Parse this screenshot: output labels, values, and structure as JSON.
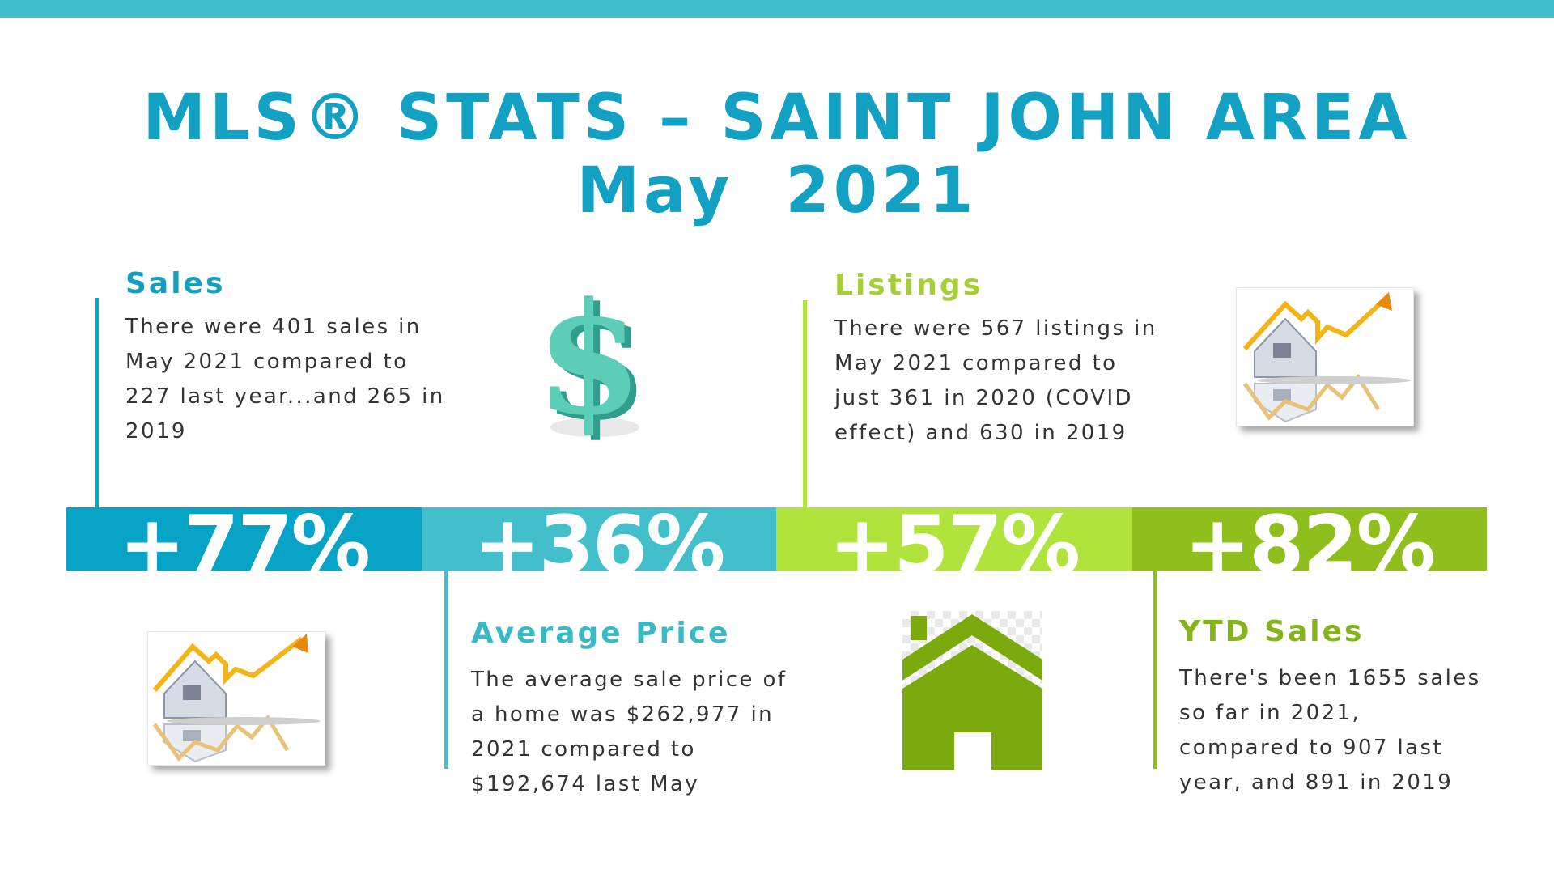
{
  "header": {
    "title_line1": "MLS® STATS – SAINT JOHN AREA",
    "title_line2": "May  2021"
  },
  "sections": {
    "sales": {
      "heading": "Sales",
      "lines": [
        "There were 401 sales in",
        "May 2021 compared to",
        "227 last year...and 265 in",
        "2019"
      ]
    },
    "listings": {
      "heading": "Listings",
      "lines": [
        "There were 567 listings in",
        "May 2021 compared to",
        "just 361 in 2020 (COVID",
        "effect) and 630 in 2019"
      ]
    },
    "average_price": {
      "heading": "Average Price",
      "lines": [
        "The average sale price of",
        "a home was $262,977 in",
        "2021 compared to",
        "$192,674 last May"
      ]
    },
    "ytd_sales": {
      "heading": "YTD Sales",
      "lines": [
        "There's been 1655 sales",
        "so far in 2021,",
        "compared to 907 last",
        "year, and 891 in 2019"
      ]
    }
  },
  "bands": [
    {
      "label": "+77%",
      "color": "#06a3c6"
    },
    {
      "label": "+36%",
      "color": "#42bfcb"
    },
    {
      "label": "+57%",
      "color": "#b0e33c"
    },
    {
      "label": "+82%",
      "color": "#8fbf1c"
    }
  ],
  "colors": {
    "top_bar": "#40bfcb",
    "title": "#12a1c3",
    "sales_heading": "#139fbd",
    "listings_heading": "#a6cf37",
    "average_price_heading": "#38b9c4",
    "ytd_heading": "#84b31c",
    "dollar": "#5ccdb7",
    "house_green": "#7aaa0d"
  },
  "icons": [
    "dollar-sign-icon",
    "house-chart-icon",
    "house-icon"
  ]
}
